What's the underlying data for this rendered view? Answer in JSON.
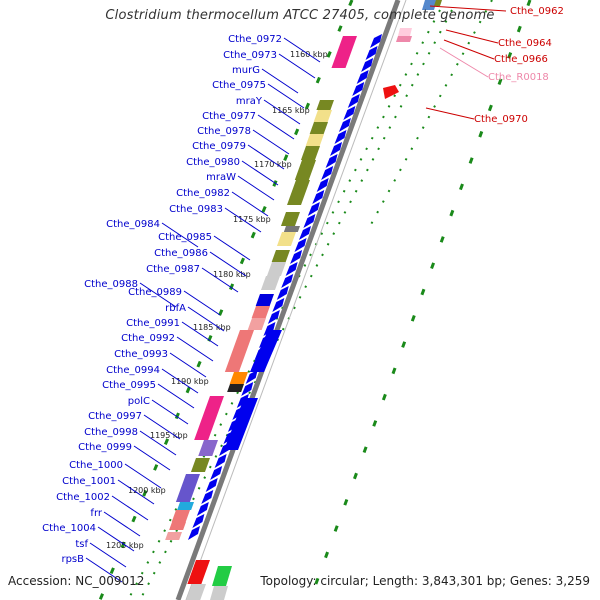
{
  "title": "Clostridium thermocellum ATCC 27405, complete genome",
  "footer": {
    "accession": "Accession: NC_009012",
    "topology": "Topology: circular; Length: 3,843,301 bp; Genes: 3,259"
  },
  "colors": {
    "background": "#ffffff",
    "left_label": "#0000cc",
    "right_label": "#cc0000",
    "pink_label": "#ee88aa",
    "backbone": "#7a7a7a",
    "tick": "#1a8a1a",
    "arrow": "#0000ee",
    "kbp_label": "#222222"
  },
  "kbp_ticks": [
    "1160 kbp",
    "1165 kbp",
    "1170 kbp",
    "1175 kbp",
    "1180 kbp",
    "1185 kbp",
    "1190 kbp",
    "1195 kbp",
    "1200 kbp",
    "1205 kbp"
  ],
  "left_genes": [
    "Cthe_0972",
    "Cthe_0973",
    "murG",
    "Cthe_0975",
    "mraY",
    "Cthe_0977",
    "Cthe_0978",
    "Cthe_0979",
    "Cthe_0980",
    "mraW",
    "Cthe_0982",
    "Cthe_0983",
    "Cthe_0984",
    "Cthe_0985",
    "Cthe_0986",
    "Cthe_0987",
    "Cthe_0988",
    "Cthe_0989",
    "rbfA",
    "Cthe_0991",
    "Cthe_0992",
    "Cthe_0993",
    "Cthe_0994",
    "Cthe_0995",
    "polC",
    "Cthe_0997",
    "Cthe_0998",
    "Cthe_0999",
    "Cthe_1000",
    "Cthe_1001",
    "Cthe_1002",
    "frr",
    "Cthe_1004",
    "tsf",
    "rpsB"
  ],
  "right_genes": [
    {
      "name": "Cthe_0962",
      "kind": "gene"
    },
    {
      "name": "Cthe_0964",
      "kind": "gene"
    },
    {
      "name": "Cthe_0966",
      "kind": "gene"
    },
    {
      "name": "Cthe_R0018",
      "kind": "rna"
    },
    {
      "name": "Cthe_0970",
      "kind": "gene"
    }
  ]
}
